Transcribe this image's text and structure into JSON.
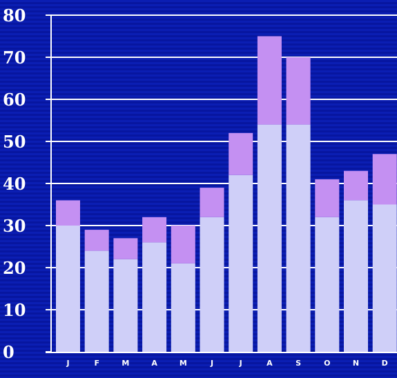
{
  "chart_data": {
    "type": "bar",
    "stacked": true,
    "categories": [
      "J",
      "F",
      "M",
      "A",
      "M",
      "J",
      "J",
      "A",
      "S",
      "O",
      "N",
      "D"
    ],
    "series": [
      {
        "values": [
          30,
          24,
          22,
          26,
          21,
          32,
          42,
          54,
          54,
          32,
          36,
          35
        ]
      },
      {
        "values": [
          6,
          5,
          5,
          6,
          9,
          7,
          10,
          21,
          16,
          9,
          7,
          12
        ]
      }
    ],
    "colors": {
      "base": "#cfcff8",
      "top": "#c490f2",
      "grid": "#ffffff",
      "axis": "#ffffff"
    },
    "ylim": [
      0,
      80
    ],
    "yticks": [
      "0",
      "10",
      "20",
      "30",
      "40",
      "50",
      "60",
      "70",
      "80"
    ],
    "grid": true
  }
}
